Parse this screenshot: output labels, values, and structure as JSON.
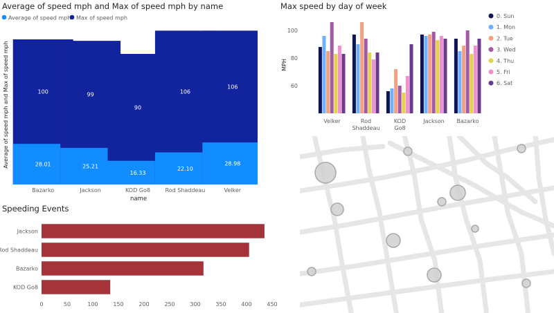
{
  "colors": {
    "max": "#12239e",
    "avg": "#118dff",
    "speeding": "#a4343a",
    "map_bg": "#ffffff",
    "road": "#e6e6e6",
    "bubble": "#d0d0d0"
  },
  "chart_data": [
    {
      "type": "bar",
      "title": "Average of speed mph and Max of speed mph by name",
      "xlabel": "name",
      "ylabel": "Average of speed mph and Max of speed mph",
      "categories": [
        "Bazarko",
        "Jackson",
        "KOD Go8",
        "Rod Shaddeau",
        "Velker"
      ],
      "series": [
        {
          "name": "Average of speed mph",
          "values": [
            28.01,
            25.21,
            16.33,
            22.1,
            28.98
          ],
          "labels": [
            "28.01",
            "25.21",
            "16.33",
            "22.10",
            "28.98"
          ]
        },
        {
          "name": "Max of speed mph",
          "values": [
            100,
            99,
            90,
            106,
            106
          ],
          "labels": [
            "100",
            "99",
            "90",
            "106",
            "106"
          ]
        }
      ],
      "ylim": [
        0,
        110
      ],
      "legend": "top-left"
    },
    {
      "type": "bar",
      "title": "Max speed by day of week",
      "ylabel": "MPH",
      "categories": [
        "Velker",
        "Rod Shaddeau",
        "KOD Go8",
        "Jackson",
        "Bazarko"
      ],
      "ylim": [
        40,
        110
      ],
      "yticks": [
        "60",
        "80",
        "100"
      ],
      "series": [
        {
          "name": "0. Sun",
          "values": [
            88,
            97,
            56,
            97,
            94
          ]
        },
        {
          "name": "1. Mon",
          "values": [
            96,
            90,
            58,
            96,
            85
          ]
        },
        {
          "name": "2. Tue",
          "values": [
            85,
            106,
            72,
            97,
            89
          ]
        },
        {
          "name": "3. Wed",
          "values": [
            106,
            94,
            60,
            99,
            100
          ]
        },
        {
          "name": "4. Thu",
          "values": [
            83,
            84,
            55,
            93,
            83
          ]
        },
        {
          "name": "5. Fri",
          "values": [
            89,
            79,
            67,
            96,
            89
          ]
        },
        {
          "name": "6. Sat",
          "values": [
            83,
            84,
            90,
            94,
            94
          ]
        }
      ],
      "series_colors": [
        "#0f1458",
        "#6fb1ff",
        "#f2a183",
        "#a25aa5",
        "#e5d24c",
        "#f090d0",
        "#6b3a8c"
      ],
      "legend": "right"
    },
    {
      "type": "bar",
      "orientation": "horizontal",
      "title": "Speeding Events",
      "categories": [
        "Jackson",
        "Rod Shaddeau",
        "Bazarko",
        "KOD Go8"
      ],
      "values": [
        435,
        405,
        316,
        134
      ],
      "xticks": [
        "0",
        "50",
        "100",
        "150",
        "200",
        "250",
        "300",
        "350",
        "400",
        "450"
      ],
      "xlim": [
        0,
        450
      ]
    }
  ]
}
